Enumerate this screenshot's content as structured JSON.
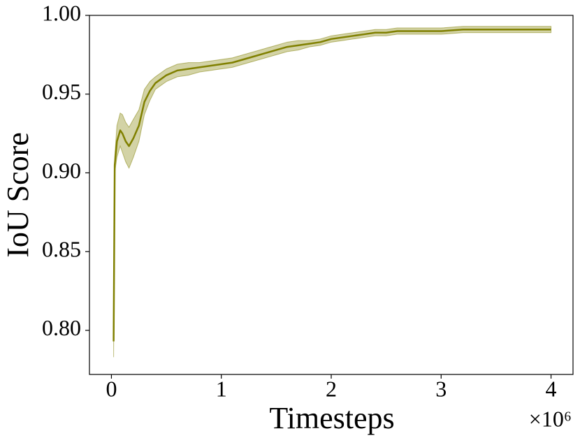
{
  "chart_data": {
    "type": "line",
    "x_label": "Timesteps",
    "y_label": "IoU Score",
    "x_offset_text": "×10⁶",
    "x": [
      0.02,
      0.03,
      0.05,
      0.08,
      0.1,
      0.13,
      0.16,
      0.2,
      0.25,
      0.3,
      0.35,
      0.4,
      0.5,
      0.6,
      0.7,
      0.8,
      0.9,
      1.0,
      1.1,
      1.2,
      1.3,
      1.4,
      1.5,
      1.6,
      1.7,
      1.8,
      1.9,
      2.0,
      2.1,
      2.2,
      2.3,
      2.4,
      2.5,
      2.6,
      2.8,
      3.0,
      3.2,
      3.4,
      3.6,
      3.8,
      4.0
    ],
    "series": [
      {
        "color": "#808000",
        "values": [
          0.793,
          0.905,
          0.92,
          0.927,
          0.925,
          0.92,
          0.917,
          0.922,
          0.93,
          0.945,
          0.952,
          0.957,
          0.962,
          0.965,
          0.966,
          0.967,
          0.968,
          0.969,
          0.97,
          0.972,
          0.974,
          0.976,
          0.978,
          0.98,
          0.981,
          0.982,
          0.983,
          0.985,
          0.986,
          0.987,
          0.988,
          0.989,
          0.989,
          0.99,
          0.99,
          0.99,
          0.991,
          0.991,
          0.991,
          0.991,
          0.991
        ],
        "lower": [
          0.783,
          0.9,
          0.91,
          0.917,
          0.913,
          0.907,
          0.903,
          0.91,
          0.92,
          0.937,
          0.946,
          0.953,
          0.958,
          0.961,
          0.962,
          0.964,
          0.965,
          0.966,
          0.967,
          0.969,
          0.971,
          0.973,
          0.975,
          0.977,
          0.978,
          0.98,
          0.981,
          0.983,
          0.984,
          0.985,
          0.986,
          0.987,
          0.987,
          0.988,
          0.988,
          0.988,
          0.989,
          0.989,
          0.989,
          0.989,
          0.989
        ],
        "upper": [
          0.8,
          0.91,
          0.93,
          0.938,
          0.937,
          0.932,
          0.929,
          0.934,
          0.94,
          0.953,
          0.958,
          0.961,
          0.966,
          0.969,
          0.97,
          0.97,
          0.971,
          0.972,
          0.973,
          0.975,
          0.977,
          0.979,
          0.981,
          0.983,
          0.984,
          0.984,
          0.985,
          0.987,
          0.988,
          0.989,
          0.99,
          0.991,
          0.991,
          0.992,
          0.992,
          0.992,
          0.993,
          0.993,
          0.993,
          0.993,
          0.993
        ]
      }
    ],
    "xlim": [
      -0.2,
      4.2
    ],
    "ylim": [
      0.772,
      1.0
    ],
    "xticks": [
      0,
      1,
      2,
      3,
      4
    ],
    "yticks": [
      {
        "value": 0.8,
        "label": "0.80"
      },
      {
        "value": 0.85,
        "label": "0.85"
      },
      {
        "value": 0.9,
        "label": "0.90"
      },
      {
        "value": 0.95,
        "label": "0.95"
      },
      {
        "value": 1.0,
        "label": "1.00"
      }
    ],
    "grid": false
  }
}
